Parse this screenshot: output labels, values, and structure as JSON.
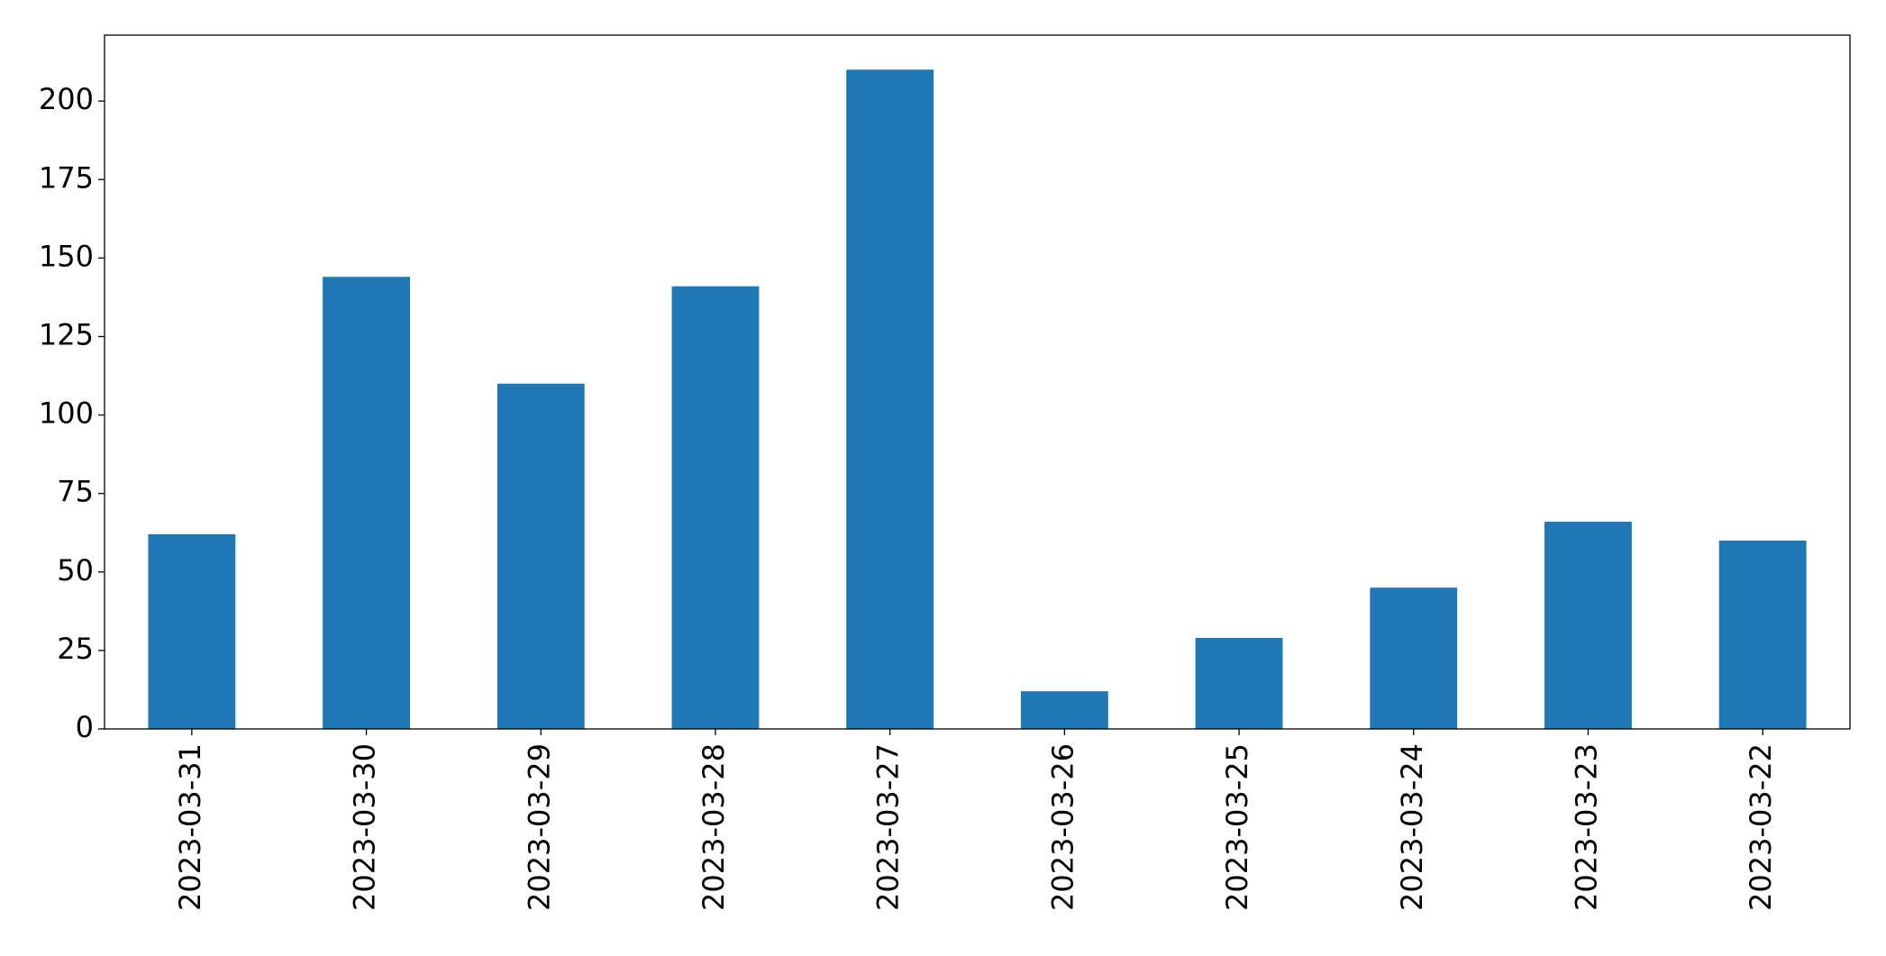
{
  "chart_data": {
    "type": "bar",
    "categories": [
      "2023-03-31",
      "2023-03-30",
      "2023-03-29",
      "2023-03-28",
      "2023-03-27",
      "2023-03-26",
      "2023-03-25",
      "2023-03-24",
      "2023-03-23",
      "2023-03-22"
    ],
    "values": [
      62,
      144,
      110,
      141,
      210,
      12,
      29,
      45,
      66,
      60
    ],
    "color": "#1f77b4",
    "ylim": [
      0,
      221
    ],
    "yticks": [
      0,
      25,
      50,
      75,
      100,
      125,
      150,
      175,
      200
    ],
    "grid": false
  }
}
